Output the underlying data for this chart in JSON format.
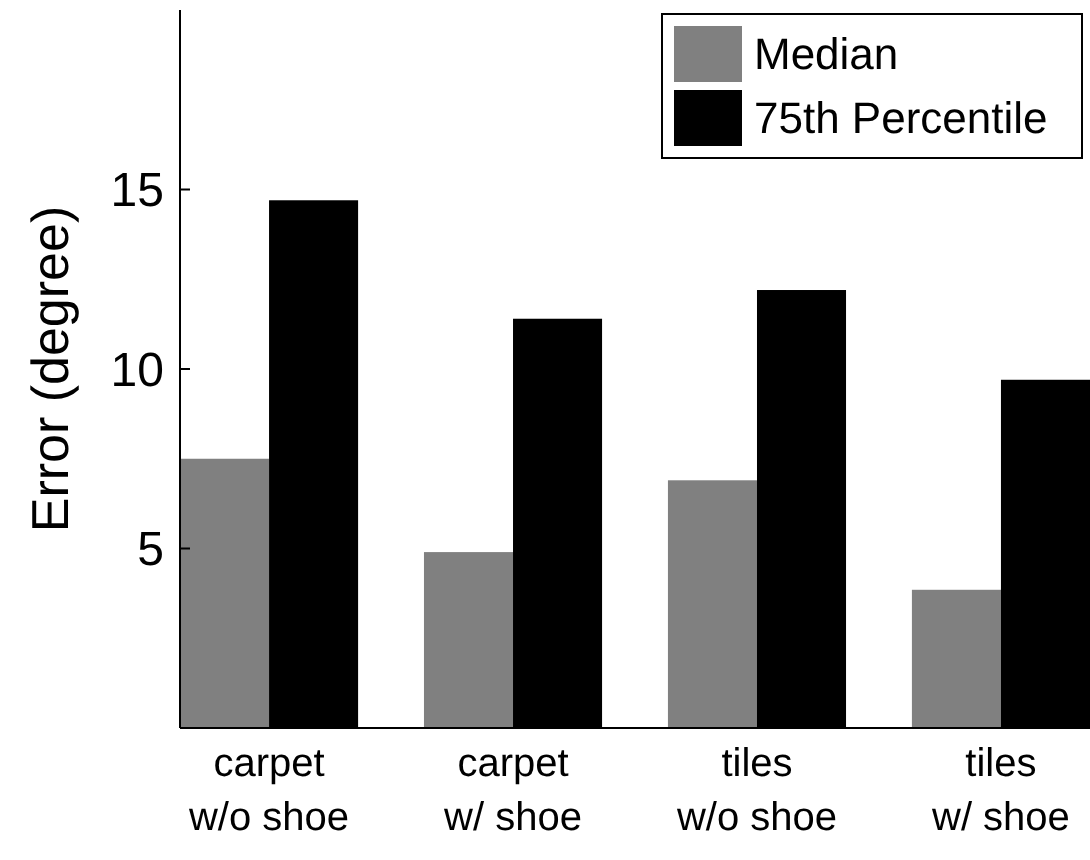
{
  "chart_data": {
    "type": "bar",
    "ylabel": "Error (degree)",
    "categories": [
      "carpet\nw/o shoe",
      "carpet\nw/ shoe",
      "tiles\nw/o shoe",
      "tiles\nw/ shoe"
    ],
    "series": [
      {
        "name": "Median",
        "color": "#808080",
        "values": [
          7.5,
          4.9,
          6.9,
          3.85
        ]
      },
      {
        "name": "75th Percentile",
        "color": "#000000",
        "values": [
          14.7,
          11.4,
          12.2,
          9.7
        ]
      }
    ],
    "ylim": [
      0,
      20
    ],
    "yticks": [
      5,
      10,
      15
    ],
    "legend": "top right",
    "grid": false
  }
}
